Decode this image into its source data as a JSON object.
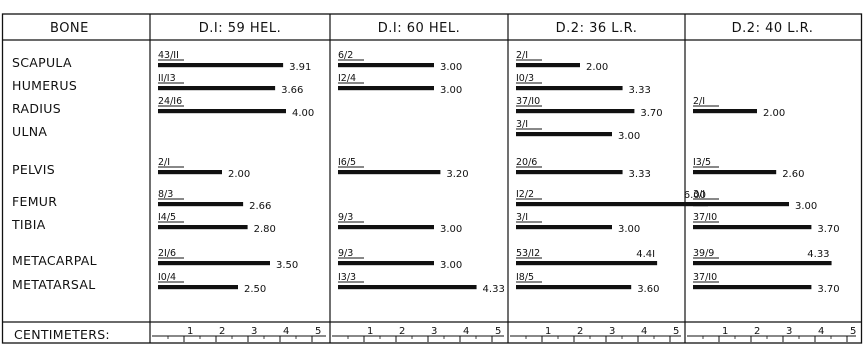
{
  "chart_data": {
    "type": "bar",
    "header": {
      "bone_label": "BONE",
      "footer_label": "CENTIMETERS:"
    },
    "axis": {
      "xlim": [
        0,
        6
      ],
      "ticks": [
        1,
        2,
        3,
        4,
        5
      ]
    },
    "bones": [
      "SCAPULA",
      "HUMERUS",
      "RADIUS",
      "ULNA",
      "PELVIS",
      "FEMUR",
      "TIBIA",
      "METACARPAL",
      "METATARSAL"
    ],
    "series": [
      {
        "name": "D.I: 59  HEL.",
        "entries": [
          {
            "label": "43/II",
            "value": 3.91,
            "value_label": "3.91"
          },
          {
            "label": "II/I3",
            "value": 3.66,
            "value_label": "3.66"
          },
          {
            "label": "24/I6",
            "value": 4.0,
            "value_label": "4.00"
          },
          null,
          {
            "label": "2/I",
            "value": 2.0,
            "value_label": "2.00"
          },
          {
            "label": "8/3",
            "value": 2.66,
            "value_label": "2.66"
          },
          {
            "label": "I4/5",
            "value": 2.8,
            "value_label": "2.80"
          },
          {
            "label": "2I/6",
            "value": 3.5,
            "value_label": "3.50"
          },
          {
            "label": "I0/4",
            "value": 2.5,
            "value_label": "2.50"
          }
        ]
      },
      {
        "name": "D.I: 60  HEL.",
        "entries": [
          {
            "label": "6/2",
            "value": 3.0,
            "value_label": "3.00"
          },
          {
            "label": "I2/4",
            "value": 3.0,
            "value_label": "3.00"
          },
          null,
          null,
          {
            "label": "I6/5",
            "value": 3.2,
            "value_label": "3.20"
          },
          null,
          {
            "label": "9/3",
            "value": 3.0,
            "value_label": "3.00"
          },
          {
            "label": "9/3",
            "value": 3.0,
            "value_label": "3.00"
          },
          {
            "label": "I3/3",
            "value": 4.33,
            "value_label": "4.33"
          }
        ]
      },
      {
        "name": "D.2: 36  L.R.",
        "entries": [
          {
            "label": "2/I",
            "value": 2.0,
            "value_label": "2.00"
          },
          {
            "label": "I0/3",
            "value": 3.33,
            "value_label": "3.33"
          },
          {
            "label": "37/I0",
            "value": 3.7,
            "value_label": "3.70"
          },
          {
            "label": "3/I",
            "value": 3.0,
            "value_label": "3.00"
          },
          {
            "label": "20/6",
            "value": 3.33,
            "value_label": "3.33"
          },
          {
            "label": "I2/2",
            "value": 6.0,
            "value_label": "6.00"
          },
          {
            "label": "3/I",
            "value": 3.0,
            "value_label": "3.00"
          },
          {
            "label": "53/I2",
            "value": 4.41,
            "value_label": "4.4I"
          },
          {
            "label": "I8/5",
            "value": 3.6,
            "value_label": "3.60"
          }
        ]
      },
      {
        "name": "D.2: 40  L.R.",
        "entries": [
          null,
          null,
          {
            "label": "2/I",
            "value": 2.0,
            "value_label": "2.00"
          },
          null,
          {
            "label": "I3/5",
            "value": 2.6,
            "value_label": "2.60"
          },
          {
            "label": "3/I",
            "value": 3.0,
            "value_label": "3.00"
          },
          {
            "label": "37/I0",
            "value": 3.7,
            "value_label": "3.70"
          },
          {
            "label": "39/9",
            "value": 4.33,
            "value_label": "4.33"
          },
          {
            "label": "37/I0",
            "value": 3.7,
            "value_label": "3.70"
          }
        ]
      }
    ]
  }
}
